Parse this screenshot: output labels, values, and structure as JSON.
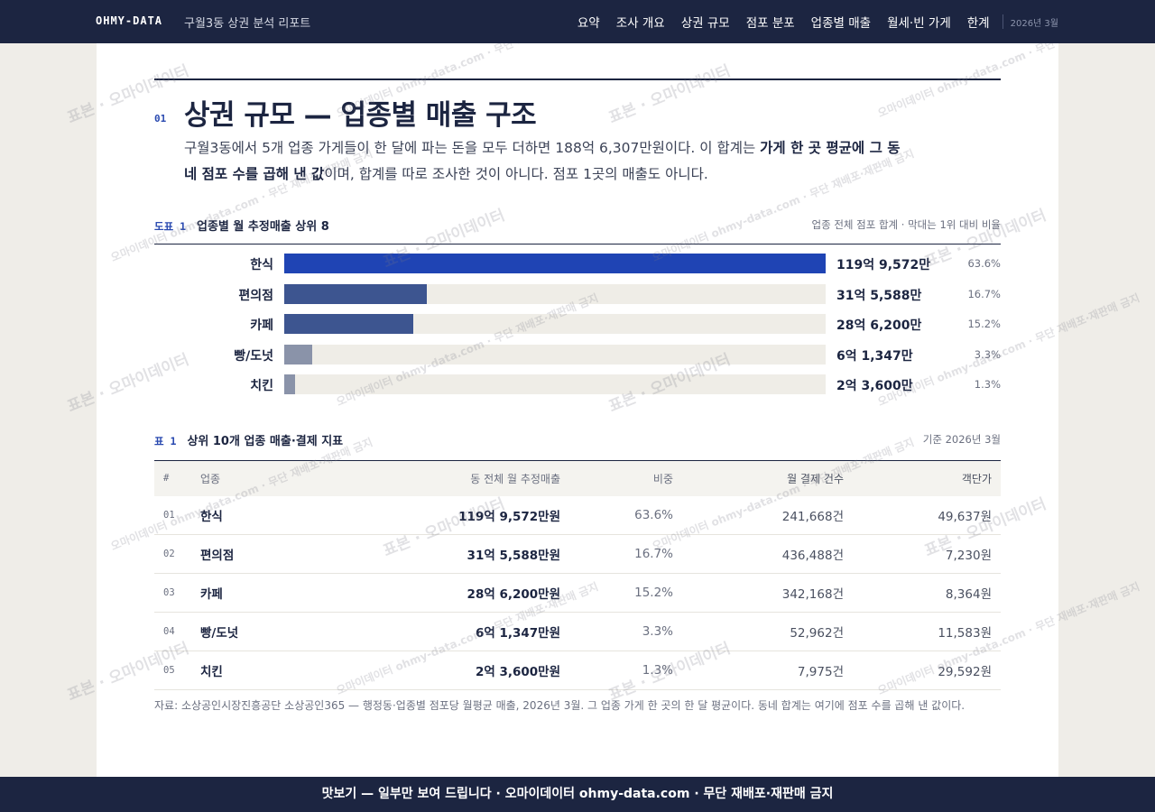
{
  "nav": {
    "brand": "OHMY-DATA",
    "subtitle": "구월3동 상권 분석 리포트",
    "links": [
      "요약",
      "조사 개요",
      "상권 규모",
      "점포 분포",
      "업종별 매출",
      "월세·빈 가게",
      "한계"
    ],
    "date": "2026년 3월"
  },
  "section": {
    "number": "01",
    "title": "상권 규모 — 업종별 매출 구조",
    "intro": [
      "구월3동에서 5개 업종 가게들이 한 달에 파는 돈을 모두 더하면 188억 6,307만원이다. 이 합계는 ",
      "가게 한 곳 평균에 그 동네 점포 수를 곱해 낸 값",
      "이며, 합계를 따로 조사한 것이 아니다. 점포 1곳의 매출도 아니다."
    ]
  },
  "figure": {
    "label": "도표 1",
    "title": "업종별 월 추정매출 상위 8",
    "note": "업종 전체 점포 합계 · 막대는 1위 대비 비율"
  },
  "chart_data": {
    "type": "bar",
    "orientation": "horizontal",
    "categories": [
      "한식",
      "편의점",
      "카페",
      "빵/도넛",
      "치킨"
    ],
    "values": [
      1199572,
      315588,
      286200,
      61347,
      23600
    ],
    "value_labels": [
      "119억 9,572만",
      "31억 5,588만",
      "28억 6,200만",
      "6억 1,347만",
      "2억 3,600만"
    ],
    "share_labels": [
      "63.6%",
      "16.7%",
      "15.2%",
      "3.3%",
      "1.3%"
    ],
    "colors": [
      "#1f44b4",
      "#3d5590",
      "#3d5590",
      "#8a93a9",
      "#8a93a9"
    ],
    "xlim": [
      0,
      1199572
    ]
  },
  "table": {
    "label": "표 1",
    "title": "상위 10개 업종 매출·결제 지표",
    "note": "기준 2026년 3월",
    "columns": [
      "#",
      "업종",
      "동 전체 월 추정매출",
      "비중",
      "월 결제 건수",
      "객단가"
    ],
    "rows": [
      [
        "01",
        "한식",
        "119억 9,572만원",
        "63.6%",
        "241,668건",
        "49,637원"
      ],
      [
        "02",
        "편의점",
        "31억 5,588만원",
        "16.7%",
        "436,488건",
        "7,230원"
      ],
      [
        "03",
        "카페",
        "28억 6,200만원",
        "15.2%",
        "342,168건",
        "8,364원"
      ],
      [
        "04",
        "빵/도넛",
        "6억 1,347만원",
        "3.3%",
        "52,962건",
        "11,583원"
      ],
      [
        "05",
        "치킨",
        "2억 3,600만원",
        "1.3%",
        "7,975건",
        "29,592원"
      ]
    ],
    "source": "자료: 소상공인시장진흥공단 소상공인365 — 행정동·업종별 점포당 월평균 매출, 2026년 3월. 그 업종 가게 한 곳의 한 달 평균이다. 동네 합계는 여기에 점포 수를 곱해 낸 값이다."
  },
  "footer": "맛보기 — 일부만 보여 드립니다 · 오마이데이터 ohmy-data.com · 무단 재배포·재판매 금지",
  "watermarks": [
    "표본 · 오마이데이터",
    "오마이데이터 ohmy-data.com · 무단 재배포·재판매 금지"
  ]
}
